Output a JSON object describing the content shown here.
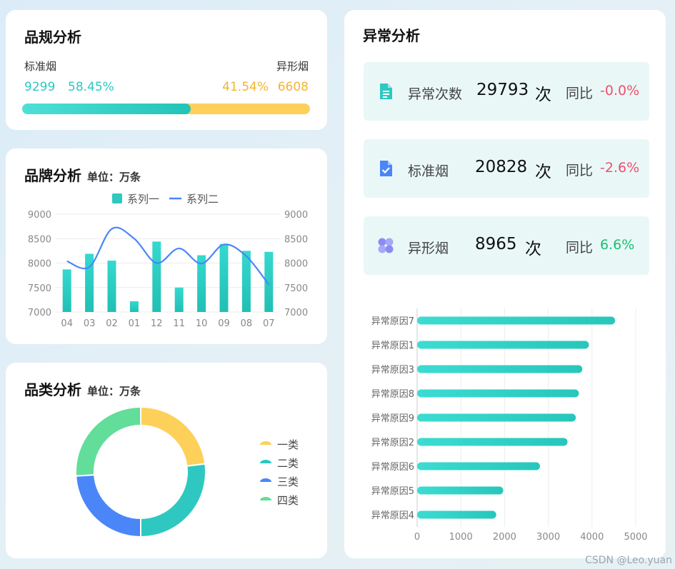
{
  "spec": {
    "title": "品规分析",
    "left_label": "标准烟",
    "right_label": "异形烟",
    "left_count": "9299",
    "left_percent": "58.45%",
    "right_percent": "41.54%",
    "right_count": "6608",
    "progress_fraction": 0.5845
  },
  "brand": {
    "title": "品牌分析",
    "unit": "单位：万条"
  },
  "category": {
    "title": "品类分析",
    "unit": "单位：万条"
  },
  "anomaly": {
    "title": "异常分析",
    "stats": [
      {
        "label": "异常次数",
        "value": "29793",
        "unit": "次",
        "yoy_label": "同比",
        "yoy": "-0.0%",
        "trend": "neg",
        "icon": "document-icon"
      },
      {
        "label": "标准烟",
        "value": "20828",
        "unit": "次",
        "yoy_label": "同比",
        "yoy": "-2.6%",
        "trend": "neg",
        "icon": "checked-file-icon"
      },
      {
        "label": "异形烟",
        "value": "8965",
        "unit": "次",
        "yoy_label": "同比",
        "yoy": "6.6%",
        "trend": "pos",
        "icon": "grid-icon"
      }
    ]
  },
  "watermark": "CSDN @Leo.yuan",
  "colors": {
    "teal": "#2ec8c0",
    "amber": "#fdd05a",
    "blue": "#4a86f7",
    "green": "#62dd9a"
  },
  "chart_data": [
    {
      "type": "bar",
      "id": "brand",
      "categories": [
        "04",
        "03",
        "02",
        "01",
        "12",
        "11",
        "10",
        "09",
        "08",
        "07"
      ],
      "series": [
        {
          "name": "系列一",
          "kind": "bar",
          "values": [
            7870,
            8190,
            8050,
            7220,
            8440,
            7500,
            8160,
            8390,
            8250,
            8230
          ]
        },
        {
          "name": "系列二",
          "kind": "line",
          "values": [
            8040,
            7920,
            8700,
            8500,
            8000,
            8300,
            7990,
            8380,
            8140,
            7560
          ]
        }
      ],
      "ylim": [
        7000,
        9000
      ],
      "yticks": [
        7000,
        7500,
        8000,
        8500,
        9000
      ],
      "legend": "top-center"
    },
    {
      "type": "pie",
      "id": "category",
      "style": "donut",
      "labels": [
        "一类",
        "二类",
        "三类",
        "四类"
      ],
      "values": [
        23,
        27,
        24,
        26
      ],
      "legend": "right"
    },
    {
      "type": "bar",
      "id": "reasons",
      "orientation": "horizontal",
      "categories": [
        "异常原因7",
        "异常原因1",
        "异常原因3",
        "异常原因8",
        "异常原因9",
        "异常原因2",
        "异常原因6",
        "异常原因5",
        "异常原因4"
      ],
      "values": [
        4530,
        3930,
        3780,
        3700,
        3630,
        3440,
        2810,
        1970,
        1810
      ],
      "xlim": [
        0,
        5000
      ],
      "xticks": [
        0,
        1000,
        2000,
        3000,
        4000,
        5000
      ]
    }
  ]
}
